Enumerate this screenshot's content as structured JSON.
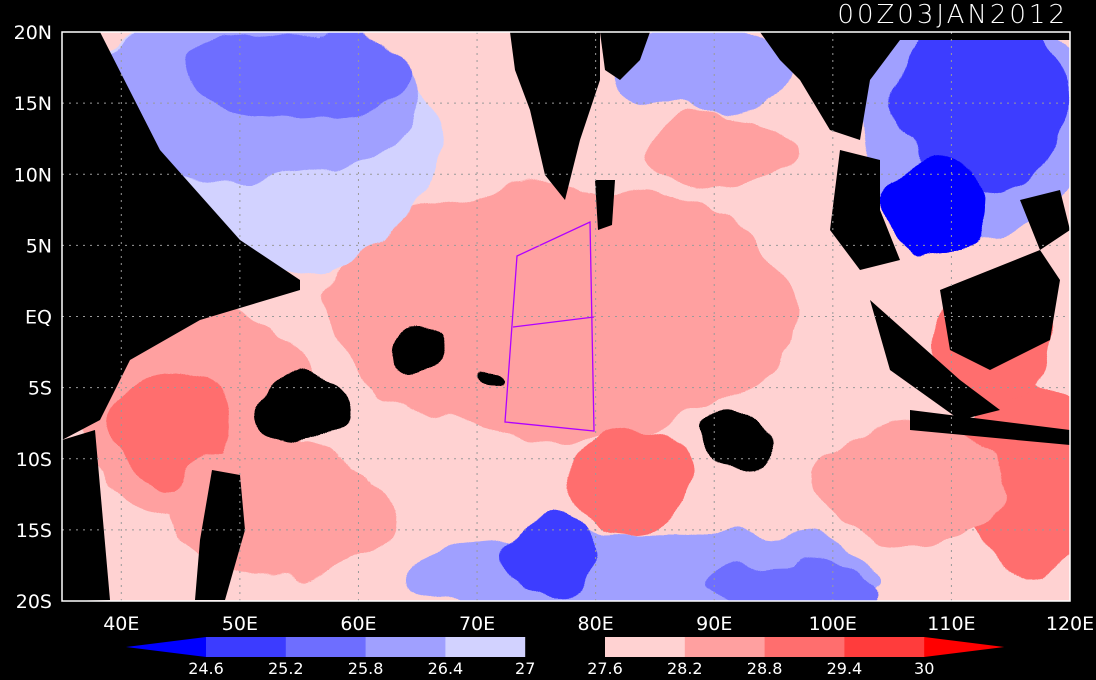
{
  "title": "00Z03JAN2012",
  "map": {
    "lat_labels": [
      "20N",
      "15N",
      "10N",
      "5N",
      "EQ",
      "5S",
      "10S",
      "15S",
      "20S"
    ],
    "lon_labels": [
      "40E",
      "50E",
      "60E",
      "70E",
      "80E",
      "90E",
      "100E",
      "110E",
      "120E"
    ],
    "lat_values": [
      20,
      15,
      10,
      5,
      0,
      -5,
      -10,
      -15,
      -20
    ],
    "lon_values": [
      40,
      50,
      60,
      70,
      80,
      90,
      100,
      110,
      120
    ],
    "lon_range": [
      35,
      120
    ],
    "lat_range": [
      -20,
      20
    ],
    "grid": "dotted",
    "box_region": {
      "lon": [
        72,
        80
      ],
      "lat": [
        -8,
        7
      ]
    }
  },
  "colorbar": {
    "levels": [
      "24.6",
      "25.2",
      "25.8",
      "26.4",
      "27",
      "27.6",
      "28.2",
      "28.8",
      "29.4",
      "30"
    ],
    "colors": [
      "#0000ff",
      "#3c3cff",
      "#6e6eff",
      "#a0a0ff",
      "#d2d2ff",
      "#000000",
      "#ffd2d2",
      "#ffa0a0",
      "#ff6e6e",
      "#ff3c3c",
      "#ff0000"
    ]
  }
}
